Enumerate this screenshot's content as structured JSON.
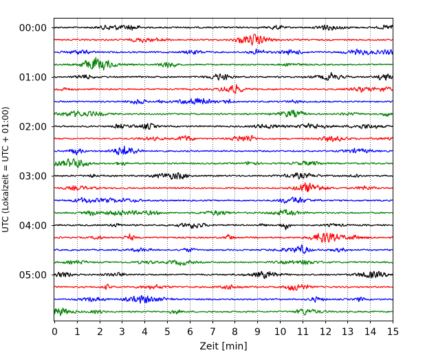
{
  "chart_data": {
    "type": "line",
    "title": "",
    "xlabel": "Zeit  [min]",
    "ylabel": "UTC (Lokalzeit = UTC + 01:00)",
    "xlim": [
      0,
      15
    ],
    "x_ticks": [
      "0",
      "1",
      "2",
      "3",
      "4",
      "5",
      "6",
      "7",
      "8",
      "9",
      "10",
      "11",
      "12",
      "13",
      "14",
      "15"
    ],
    "y_tick_labels": [
      "00:00",
      "01:00",
      "02:00",
      "03:00",
      "04:00",
      "05:00"
    ],
    "grid": "vertical dotted lines at each minute",
    "trace_interval_minutes": 15,
    "trace_count": 24,
    "trace_colors": [
      "#000000",
      "#ff0000",
      "#0000ff",
      "#008000"
    ],
    "series": [
      {
        "start": "00:00",
        "color": "#000000"
      },
      {
        "start": "00:15",
        "color": "#ff0000"
      },
      {
        "start": "00:30",
        "color": "#0000ff"
      },
      {
        "start": "00:45",
        "color": "#008000"
      },
      {
        "start": "01:00",
        "color": "#000000"
      },
      {
        "start": "01:15",
        "color": "#ff0000"
      },
      {
        "start": "01:30",
        "color": "#0000ff"
      },
      {
        "start": "01:45",
        "color": "#008000"
      },
      {
        "start": "02:00",
        "color": "#000000"
      },
      {
        "start": "02:15",
        "color": "#ff0000"
      },
      {
        "start": "02:30",
        "color": "#0000ff"
      },
      {
        "start": "02:45",
        "color": "#008000"
      },
      {
        "start": "03:00",
        "color": "#000000"
      },
      {
        "start": "03:15",
        "color": "#ff0000"
      },
      {
        "start": "03:30",
        "color": "#0000ff"
      },
      {
        "start": "03:45",
        "color": "#008000"
      },
      {
        "start": "04:00",
        "color": "#000000"
      },
      {
        "start": "04:15",
        "color": "#ff0000"
      },
      {
        "start": "04:30",
        "color": "#0000ff"
      },
      {
        "start": "04:45",
        "color": "#008000"
      },
      {
        "start": "05:00",
        "color": "#000000"
      },
      {
        "start": "05:15",
        "color": "#ff0000"
      },
      {
        "start": "05:30",
        "color": "#0000ff"
      },
      {
        "start": "05:45",
        "color": "#008000"
      }
    ]
  }
}
